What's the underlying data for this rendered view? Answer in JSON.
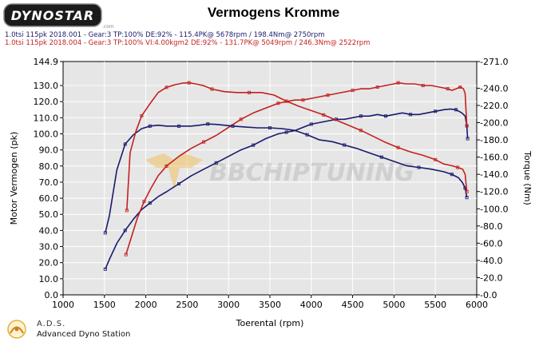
{
  "header": {
    "logo_text": "DYNOSTAR",
    "logo_small": ".com",
    "title": "Vermogens Kromme",
    "runs": [
      "1.0tsi 115pk 2018.001 - Gear:3 TP:100% DE:92%  - 115.4PK@ 5678rpm / 198.4Nm@ 2750rpm",
      "1.0tsi 115pk 2018.004 - Gear:3 TP:100% VI:4.00kgm2 DE:92%  - 131.7PK@ 5049rpm / 246.3Nm@ 2522rpm"
    ]
  },
  "watermark": {
    "text": "BBCHIPTUNING"
  },
  "footer": {
    "name": "A.D.S.",
    "desc": "Advanced Dyno Station"
  },
  "colors": {
    "stock": "#1a1a6e",
    "tuned": "#c42020",
    "plot_bg": "#e6e6e6",
    "watermark": "#f0c060"
  },
  "chart_data": {
    "type": "line",
    "xlabel": "Toerental (rpm)",
    "ylabel": "Motor Vermogen (pk)",
    "y2label": "Torque (Nm)",
    "xlim": [
      1000,
      6000
    ],
    "ylim": [
      0,
      144.9
    ],
    "y2lim": [
      0,
      271
    ],
    "x_ticks": [
      "1000",
      "1500",
      "2000",
      "2500",
      "3000",
      "3500",
      "4000",
      "4500",
      "5000",
      "5500",
      "6000"
    ],
    "y_ticks": [
      "0.0",
      "10.0",
      "20.0",
      "30.0",
      "40.0",
      "50.0",
      "60.0",
      "70.0",
      "80.0",
      "90.0",
      "100.0",
      "110.0",
      "120.0",
      "130.0",
      "144.9"
    ],
    "y2_ticks": [
      "-0.0",
      "-20.0",
      "-40.0",
      "-60.0",
      "-80.0",
      "-100.0",
      "-120.0",
      "-140.0",
      "-160.0",
      "-180.0",
      "-200.0",
      "-220.0",
      "-240.0",
      "-271.0"
    ],
    "grid": true,
    "series": [
      {
        "axis": "left",
        "color": "#1a1a6e",
        "x": [
          1510,
          1560,
          1650,
          1750,
          1850,
          1950,
          2050,
          2150,
          2250,
          2400,
          2550,
          2700,
          2850,
          3000,
          3150,
          3300,
          3450,
          3600,
          3700,
          3800,
          3900,
          4000,
          4100,
          4200,
          4300,
          4400,
          4500,
          4600,
          4700,
          4800,
          4900,
          5000,
          5100,
          5200,
          5300,
          5400,
          5500,
          5600,
          5680,
          5750,
          5820,
          5860,
          5880,
          5890
        ],
        "y": [
          16,
          22,
          32,
          40,
          47,
          53,
          57,
          61,
          64,
          69,
          74,
          78,
          82,
          86,
          90,
          93,
          97,
          100,
          101,
          102,
          104,
          106,
          107,
          108,
          109,
          109,
          110,
          111,
          111,
          112,
          111,
          112,
          113,
          112,
          112,
          113,
          114,
          115,
          115.4,
          115,
          113,
          111,
          105,
          97
        ]
      },
      {
        "axis": "left",
        "color": "#c42020",
        "x": [
          1760,
          1820,
          1900,
          1980,
          2060,
          2150,
          2250,
          2400,
          2550,
          2700,
          2850,
          3000,
          3150,
          3300,
          3450,
          3600,
          3700,
          3800,
          3900,
          4000,
          4100,
          4200,
          4300,
          4400,
          4500,
          4600,
          4700,
          4800,
          4900,
          5000,
          5050,
          5150,
          5250,
          5350,
          5450,
          5550,
          5650,
          5700,
          5750,
          5800,
          5840,
          5860,
          5880
        ],
        "y": [
          25,
          35,
          48,
          58,
          66,
          74,
          80,
          86,
          91,
          95,
          99,
          104,
          109,
          113,
          116,
          119,
          120,
          121,
          121,
          122,
          123,
          124,
          125,
          126,
          127,
          128,
          128,
          129,
          130,
          131,
          131.7,
          131,
          131,
          130,
          130,
          129,
          128,
          127,
          128,
          129,
          128,
          125,
          105
        ]
      },
      {
        "axis": "right",
        "color": "#1a1a6e",
        "x": [
          1510,
          1560,
          1650,
          1750,
          1850,
          1950,
          2050,
          2150,
          2250,
          2400,
          2550,
          2650,
          2750,
          2850,
          2950,
          3050,
          3200,
          3350,
          3500,
          3650,
          3800,
          3950,
          4100,
          4250,
          4400,
          4550,
          4700,
          4850,
          5000,
          5150,
          5300,
          5450,
          5600,
          5700,
          5780,
          5830,
          5860,
          5880
        ],
        "y": [
          72,
          92,
          145,
          175,
          186,
          193,
          196,
          197,
          196,
          196,
          196,
          197,
          198.4,
          198,
          197,
          196,
          195,
          194,
          194,
          193,
          191,
          186,
          180,
          178,
          174,
          170,
          165,
          160,
          155,
          150,
          148,
          146,
          143,
          140,
          136,
          130,
          124,
          113
        ]
      },
      {
        "axis": "right",
        "color": "#c42020",
        "x": [
          1770,
          1810,
          1880,
          1950,
          2050,
          2150,
          2250,
          2350,
          2450,
          2522,
          2600,
          2700,
          2800,
          2950,
          3100,
          3250,
          3400,
          3550,
          3700,
          3850,
          4000,
          4150,
          4300,
          4450,
          4600,
          4750,
          4900,
          5050,
          5200,
          5350,
          5500,
          5600,
          5700,
          5770,
          5830,
          5860,
          5880
        ],
        "y": [
          98,
          165,
          190,
          208,
          222,
          235,
          241,
          244,
          246,
          246.3,
          245,
          243,
          239,
          236,
          235,
          235,
          235,
          232,
          225,
          219,
          214,
          209,
          203,
          197,
          191,
          184,
          177,
          171,
          166,
          162,
          157,
          152,
          150,
          148,
          146,
          140,
          120
        ]
      }
    ]
  }
}
